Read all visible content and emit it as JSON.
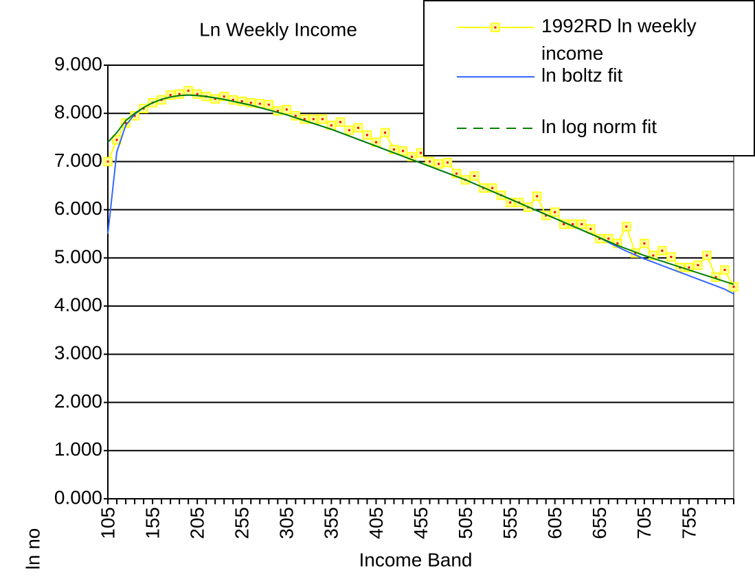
{
  "chart_data": {
    "type": "line",
    "title": "Ln Weekly Income",
    "x_label": "Income Band",
    "y_label": "ln no",
    "categories": [
      "105",
      null,
      null,
      null,
      null,
      "155",
      null,
      null,
      null,
      null,
      "205",
      null,
      null,
      null,
      null,
      "255",
      null,
      null,
      null,
      null,
      "305",
      null,
      null,
      null,
      null,
      "355",
      null,
      null,
      null,
      null,
      "405",
      null,
      null,
      null,
      null,
      "455",
      null,
      null,
      null,
      null,
      "505",
      null,
      null,
      null,
      null,
      "555",
      null,
      null,
      null,
      null,
      "605",
      null,
      null,
      null,
      null,
      "655",
      null,
      null,
      null,
      null,
      "705",
      null,
      null,
      null,
      null,
      "755",
      null,
      null,
      null,
      null,
      null
    ],
    "ylim": [
      0,
      9
    ],
    "yticks": [
      {
        "value": 0,
        "label": "0.000"
      },
      {
        "value": 1,
        "label": "1.000"
      },
      {
        "value": 2,
        "label": "2.000"
      },
      {
        "value": 3,
        "label": "3.000"
      },
      {
        "value": 4,
        "label": "4.000"
      },
      {
        "value": 5,
        "label": "5.000"
      },
      {
        "value": 6,
        "label": "6.000"
      },
      {
        "value": 7,
        "label": "7.000"
      },
      {
        "value": 8,
        "label": "8.000"
      },
      {
        "value": 9,
        "label": "9.000"
      }
    ],
    "grid": true,
    "legend": "top-right",
    "series": [
      {
        "name": "1992RD ln weekly income",
        "color": "#ffff00",
        "marker": true,
        "dashed": false,
        "values": [
          7.0,
          7.45,
          7.8,
          7.95,
          8.1,
          8.22,
          8.28,
          8.38,
          8.4,
          8.47,
          8.4,
          8.35,
          8.3,
          8.35,
          8.28,
          8.25,
          8.22,
          8.2,
          8.18,
          8.05,
          8.08,
          7.95,
          7.88,
          7.88,
          7.88,
          7.75,
          7.82,
          7.65,
          7.7,
          7.55,
          7.4,
          7.6,
          7.25,
          7.22,
          7.1,
          7.18,
          7.0,
          6.95,
          6.98,
          6.75,
          6.62,
          6.7,
          6.45,
          6.45,
          6.3,
          6.15,
          6.15,
          6.05,
          6.28,
          5.88,
          5.95,
          5.7,
          5.7,
          5.7,
          5.6,
          5.4,
          5.4,
          5.3,
          5.65,
          5.1,
          5.3,
          5.05,
          5.15,
          5.02,
          4.8,
          4.8,
          4.85,
          5.05,
          4.6,
          4.75,
          4.4
        ]
      },
      {
        "name": "ln boltz fit",
        "color": "#3366ff",
        "marker": false,
        "dashed": false,
        "values": [
          5.5,
          7.2,
          7.75,
          7.98,
          8.12,
          8.22,
          8.29,
          8.34,
          8.37,
          8.38,
          8.37,
          8.35,
          8.32,
          8.29,
          8.25,
          8.21,
          8.17,
          8.12,
          8.07,
          8.02,
          7.97,
          7.91,
          7.85,
          7.79,
          7.73,
          7.67,
          7.6,
          7.53,
          7.46,
          7.39,
          7.32,
          7.25,
          7.18,
          7.11,
          7.04,
          6.97,
          6.9,
          6.83,
          6.76,
          6.69,
          6.62,
          6.54,
          6.46,
          6.38,
          6.3,
          6.22,
          6.14,
          6.06,
          5.98,
          5.9,
          5.82,
          5.74,
          5.66,
          5.58,
          5.5,
          5.42,
          5.32,
          5.23,
          5.14,
          5.06,
          4.98,
          4.91,
          4.84,
          4.77,
          4.7,
          4.63,
          4.56,
          4.49,
          4.42,
          4.35,
          4.25
        ]
      },
      {
        "name": "ln log norm fit",
        "color": "#008000",
        "marker": false,
        "dashed": true,
        "values": [
          7.4,
          7.6,
          7.85,
          8.0,
          8.12,
          8.22,
          8.29,
          8.34,
          8.37,
          8.38,
          8.37,
          8.35,
          8.32,
          8.29,
          8.25,
          8.21,
          8.17,
          8.12,
          8.07,
          8.02,
          7.97,
          7.91,
          7.85,
          7.79,
          7.73,
          7.67,
          7.6,
          7.53,
          7.46,
          7.39,
          7.32,
          7.25,
          7.18,
          7.11,
          7.04,
          6.97,
          6.9,
          6.83,
          6.76,
          6.69,
          6.62,
          6.54,
          6.46,
          6.38,
          6.3,
          6.22,
          6.14,
          6.06,
          5.98,
          5.9,
          5.82,
          5.74,
          5.66,
          5.58,
          5.5,
          5.42,
          5.34,
          5.26,
          5.19,
          5.12,
          5.05,
          4.99,
          4.93,
          4.87,
          4.81,
          4.75,
          4.69,
          4.63,
          4.57,
          4.51,
          4.45
        ]
      }
    ]
  }
}
